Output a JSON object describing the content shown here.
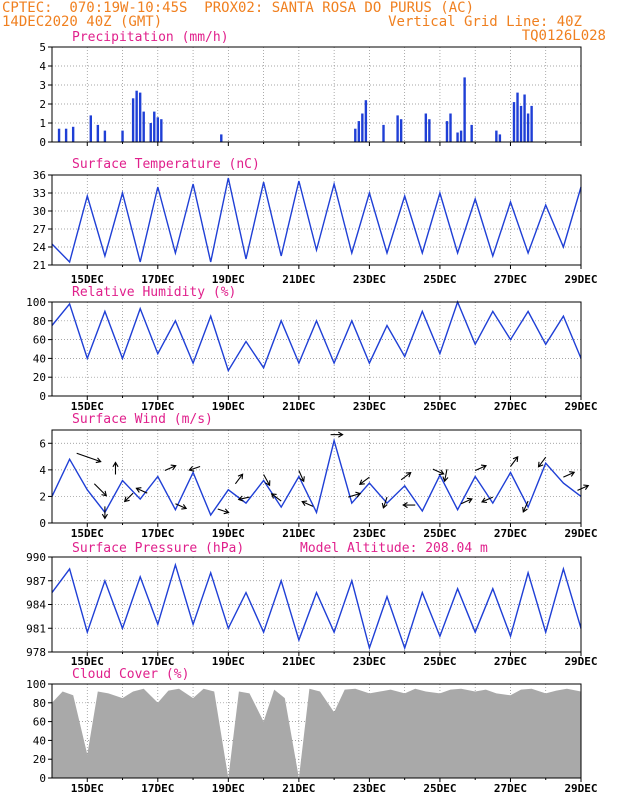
{
  "header": {
    "line1": "CPTEC:  070:19W-10:45S  PROX02: SANTA ROSA DO PURUS (AC)",
    "date": "14DEC2020 40Z (GMT)",
    "grid_note": "Vertical Grid Line: 40Z",
    "code": "TQ0126L028"
  },
  "x_labels": [
    "15DEC",
    "17DEC",
    "19DEC",
    "21DEC",
    "23DEC",
    "25DEC",
    "27DEC",
    "29DEC"
  ],
  "colors": {
    "header": "#f08020",
    "title": "#e0208c",
    "line": "#1f3fd6",
    "cloud": "#a9a9a9"
  },
  "chart_data": [
    {
      "type": "bar",
      "title": "Precipitation (mm/h)",
      "ylim": [
        0,
        5
      ],
      "yticks": [
        "0",
        "1",
        "2",
        "3",
        "4",
        "5"
      ],
      "x_range": [
        14.0,
        29.0
      ],
      "bars": [
        [
          14.2,
          0.7
        ],
        [
          14.4,
          0.7
        ],
        [
          14.6,
          0.8
        ],
        [
          15.1,
          1.4
        ],
        [
          15.3,
          0.9
        ],
        [
          15.5,
          0.6
        ],
        [
          16.0,
          0.6
        ],
        [
          16.3,
          2.3
        ],
        [
          16.4,
          2.7
        ],
        [
          16.5,
          2.6
        ],
        [
          16.6,
          1.6
        ],
        [
          16.8,
          1.0
        ],
        [
          16.9,
          1.6
        ],
        [
          17.0,
          1.3
        ],
        [
          17.1,
          1.2
        ],
        [
          18.8,
          0.4
        ],
        [
          22.6,
          0.7
        ],
        [
          22.7,
          1.1
        ],
        [
          22.8,
          1.5
        ],
        [
          22.9,
          2.2
        ],
        [
          23.4,
          0.9
        ],
        [
          23.8,
          1.4
        ],
        [
          23.9,
          1.2
        ],
        [
          24.6,
          1.5
        ],
        [
          24.7,
          1.2
        ],
        [
          25.2,
          1.1
        ],
        [
          25.3,
          1.5
        ],
        [
          25.5,
          0.5
        ],
        [
          25.6,
          0.6
        ],
        [
          25.7,
          3.4
        ],
        [
          25.9,
          0.9
        ],
        [
          26.6,
          0.6
        ],
        [
          26.7,
          0.4
        ],
        [
          27.1,
          2.1
        ],
        [
          27.2,
          2.6
        ],
        [
          27.3,
          1.9
        ],
        [
          27.4,
          2.5
        ],
        [
          27.5,
          1.5
        ],
        [
          27.6,
          1.9
        ]
      ]
    },
    {
      "type": "line",
      "title": "Surface Temperature (nC)",
      "ylim": [
        21,
        36
      ],
      "yticks": [
        "21",
        "24",
        "27",
        "30",
        "33",
        "36"
      ],
      "x": [
        14.0,
        14.5,
        15.0,
        15.5,
        16.0,
        16.5,
        17.0,
        17.5,
        18.0,
        18.5,
        19.0,
        19.5,
        20.0,
        20.5,
        21.0,
        21.5,
        22.0,
        22.5,
        23.0,
        23.5,
        24.0,
        24.5,
        25.0,
        25.5,
        26.0,
        26.5,
        27.0,
        27.5,
        28.0,
        28.5,
        29.0
      ],
      "values": [
        24.5,
        21.5,
        32.5,
        22.5,
        33.0,
        21.5,
        34.0,
        23.0,
        34.5,
        21.5,
        35.5,
        22.0,
        34.8,
        22.5,
        35.0,
        23.5,
        34.5,
        23.0,
        33.0,
        23.0,
        32.5,
        23.0,
        33.0,
        23.0,
        32.0,
        22.5,
        31.5,
        23.0,
        31.0,
        24.0,
        34.0
      ]
    },
    {
      "type": "line",
      "title": "Relative Humidity (%)",
      "ylim": [
        0,
        100
      ],
      "yticks": [
        "0",
        "20",
        "40",
        "60",
        "80",
        "100"
      ],
      "x": [
        14.0,
        14.5,
        15.0,
        15.5,
        16.0,
        16.5,
        17.0,
        17.5,
        18.0,
        18.5,
        19.0,
        19.5,
        20.0,
        20.5,
        21.0,
        21.5,
        22.0,
        22.5,
        23.0,
        23.5,
        24.0,
        24.5,
        25.0,
        25.5,
        26.0,
        26.5,
        27.0,
        27.5,
        28.0,
        28.5,
        29.0
      ],
      "values": [
        75,
        98,
        40,
        90,
        40,
        93,
        45,
        80,
        35,
        85,
        27,
        58,
        30,
        80,
        35,
        80,
        35,
        80,
        35,
        75,
        42,
        90,
        45,
        100,
        55,
        90,
        60,
        90,
        55,
        85,
        40
      ]
    },
    {
      "type": "line",
      "title": "Surface Wind (m/s)",
      "ylim": [
        0,
        7
      ],
      "yticks": [
        "0",
        "2",
        "4",
        "6"
      ],
      "x": [
        14.0,
        14.5,
        15.0,
        15.5,
        16.0,
        16.5,
        17.0,
        17.5,
        18.0,
        18.5,
        19.0,
        19.5,
        20.0,
        20.5,
        21.0,
        21.5,
        22.0,
        22.5,
        23.0,
        23.5,
        24.0,
        24.5,
        25.0,
        25.5,
        26.0,
        26.5,
        27.0,
        27.5,
        28.0,
        28.5,
        29.0
      ],
      "values": [
        2.0,
        4.8,
        2.5,
        0.8,
        3.2,
        1.8,
        3.5,
        1.0,
        3.8,
        0.6,
        2.5,
        1.5,
        3.2,
        1.2,
        3.5,
        0.8,
        6.2,
        1.5,
        3.0,
        1.5,
        2.8,
        0.9,
        3.6,
        1.0,
        3.5,
        1.5,
        3.8,
        1.2,
        4.5,
        3.0,
        2.0
      ],
      "vectors": [
        [
          14.7,
          2,
          -0.7
        ],
        [
          15.2,
          1,
          -1
        ],
        [
          15.5,
          0,
          -1
        ],
        [
          15.8,
          0,
          1
        ],
        [
          16.3,
          -0.7,
          -0.7
        ],
        [
          16.7,
          -0.9,
          0.4
        ],
        [
          17.2,
          0.9,
          0.4
        ],
        [
          17.5,
          0.9,
          -0.4
        ],
        [
          18.2,
          -0.9,
          -0.3
        ],
        [
          18.7,
          0.9,
          -0.3
        ],
        [
          19.2,
          0.6,
          0.8
        ],
        [
          19.6,
          -0.9,
          -0.2
        ],
        [
          20.0,
          0.5,
          -0.9
        ],
        [
          20.5,
          -0.8,
          0.6
        ],
        [
          21.0,
          0.4,
          -0.9
        ],
        [
          21.4,
          -0.9,
          0.4
        ],
        [
          21.9,
          1,
          0
        ],
        [
          22.4,
          1,
          0.3
        ],
        [
          23.0,
          -0.8,
          -0.6
        ],
        [
          23.5,
          -0.3,
          -0.9
        ],
        [
          23.9,
          0.8,
          0.6
        ],
        [
          24.3,
          -1,
          0
        ],
        [
          24.8,
          0.9,
          -0.4
        ],
        [
          25.2,
          -0.2,
          -1
        ],
        [
          25.6,
          0.9,
          0.4
        ],
        [
          26.0,
          0.9,
          0.4
        ],
        [
          26.5,
          -0.9,
          -0.4
        ],
        [
          27.0,
          0.6,
          0.8
        ],
        [
          27.5,
          -0.4,
          -0.9
        ],
        [
          28.0,
          -0.6,
          -0.8
        ],
        [
          28.5,
          0.9,
          0.4
        ],
        [
          28.9,
          0.9,
          0.4
        ]
      ]
    },
    {
      "type": "line",
      "title": "Surface Pressure (hPa)",
      "note": "Model Altitude: 208.04 m",
      "ylim": [
        978,
        990
      ],
      "yticks": [
        "978",
        "981",
        "984",
        "987",
        "990"
      ],
      "x": [
        14.0,
        14.5,
        15.0,
        15.5,
        16.0,
        16.5,
        17.0,
        17.5,
        18.0,
        18.5,
        19.0,
        19.5,
        20.0,
        20.5,
        21.0,
        21.5,
        22.0,
        22.5,
        23.0,
        23.5,
        24.0,
        24.5,
        25.0,
        25.5,
        26.0,
        26.5,
        27.0,
        27.5,
        28.0,
        28.5,
        29.0
      ],
      "values": [
        985.5,
        988.5,
        980.5,
        987.0,
        981.0,
        987.5,
        981.5,
        989.0,
        981.5,
        988.0,
        981.0,
        985.5,
        980.5,
        987.0,
        979.5,
        985.5,
        980.5,
        987.0,
        978.5,
        985.0,
        978.5,
        985.5,
        980.0,
        986.0,
        980.5,
        986.0,
        980.0,
        988.0,
        980.5,
        988.5,
        981.0
      ]
    },
    {
      "type": "area",
      "title": "Cloud Cover (%)",
      "ylim": [
        0,
        100
      ],
      "yticks": [
        "0",
        "20",
        "40",
        "60",
        "80",
        "100"
      ],
      "x": [
        14.0,
        14.3,
        14.6,
        15.0,
        15.3,
        15.6,
        16.0,
        16.3,
        16.6,
        17.0,
        17.3,
        17.6,
        18.0,
        18.3,
        18.6,
        19.0,
        19.3,
        19.6,
        20.0,
        20.3,
        20.6,
        21.0,
        21.3,
        21.6,
        22.0,
        22.3,
        22.6,
        23.0,
        23.3,
        23.6,
        24.0,
        24.3,
        24.6,
        25.0,
        25.3,
        25.6,
        26.0,
        26.3,
        26.6,
        27.0,
        27.3,
        27.6,
        28.0,
        28.3,
        28.6,
        29.0
      ],
      "values": [
        80,
        92,
        88,
        25,
        92,
        90,
        85,
        92,
        95,
        80,
        93,
        95,
        85,
        95,
        92,
        0,
        92,
        90,
        60,
        94,
        85,
        0,
        95,
        92,
        70,
        94,
        95,
        90,
        92,
        94,
        90,
        95,
        92,
        90,
        94,
        95,
        92,
        94,
        90,
        88,
        94,
        95,
        90,
        93,
        95,
        92
      ]
    }
  ]
}
